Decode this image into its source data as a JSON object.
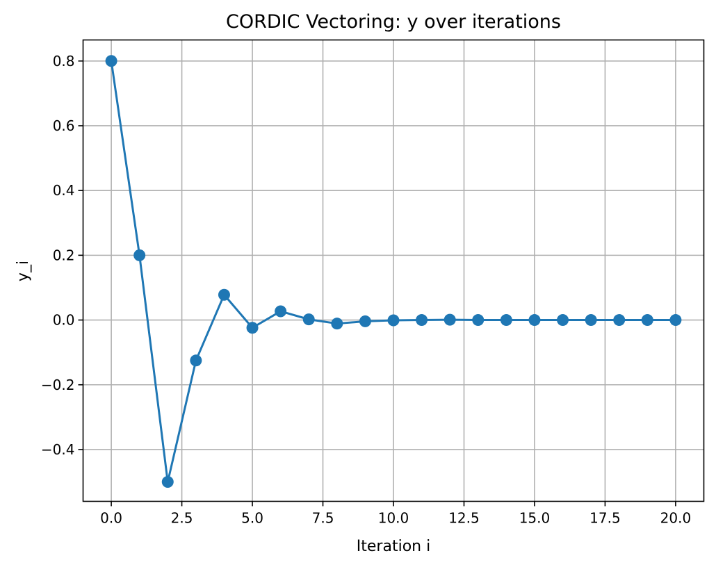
{
  "chart_data": {
    "type": "line",
    "title": "CORDIC Vectoring: y over iterations",
    "xlabel": "Iteration i",
    "ylabel": "y_i",
    "xlim": [
      -1.0,
      21.0
    ],
    "ylim": [
      -0.56,
      0.865
    ],
    "xticks": [
      "0.0",
      "2.5",
      "5.0",
      "7.5",
      "10.0",
      "12.5",
      "15.0",
      "17.5",
      "20.0"
    ],
    "yticks": [
      "−0.4",
      "−0.2",
      "0.0",
      "0.2",
      "0.4",
      "0.6",
      "0.8"
    ],
    "grid": true,
    "series": [
      {
        "color": "#1f77b4",
        "marker": "circle",
        "x": [
          0,
          1,
          2,
          3,
          4,
          5,
          6,
          7,
          8,
          9,
          10,
          11,
          12,
          13,
          14,
          15,
          16,
          17,
          18,
          19,
          20
        ],
        "y": [
          0.8,
          0.2,
          -0.5,
          -0.125,
          0.078,
          -0.024,
          0.027,
          0.002,
          -0.011,
          -0.004,
          -0.001,
          0.0,
          0.001,
          0.0,
          0.0,
          0.0,
          0.0,
          0.0,
          0.0,
          0.0,
          0.0
        ]
      }
    ]
  }
}
